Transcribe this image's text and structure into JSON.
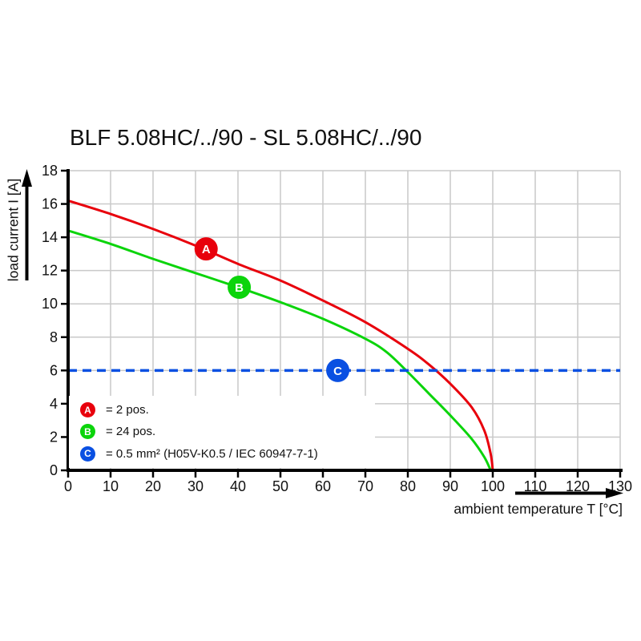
{
  "title": "BLF 5.08HC/../90 - SL 5.08HC/../90",
  "chart_data": {
    "type": "line",
    "title": "BLF 5.08HC/../90 - SL 5.08HC/../90",
    "xlabel": "ambient temperature T [°C]",
    "ylabel": "load current I [A]",
    "x_axis": {
      "min": 0,
      "max": 130,
      "ticks": [
        0,
        10,
        20,
        30,
        40,
        50,
        60,
        70,
        80,
        90,
        100,
        110,
        120,
        130
      ]
    },
    "y_axis": {
      "min": 0,
      "max": 18,
      "ticks": [
        0,
        2,
        4,
        6,
        8,
        10,
        12,
        14,
        16,
        18
      ]
    },
    "grid": true,
    "legend_position": "bottom-left-inside",
    "series": [
      {
        "id": "A",
        "name": "2 pos.",
        "color": "#e8000c",
        "style": "solid",
        "points": [
          [
            0,
            16.2
          ],
          [
            10,
            15.4
          ],
          [
            20,
            14.5
          ],
          [
            30,
            13.5
          ],
          [
            40,
            12.4
          ],
          [
            50,
            11.4
          ],
          [
            60,
            10.2
          ],
          [
            70,
            8.9
          ],
          [
            80,
            7.3
          ],
          [
            85,
            6.35
          ],
          [
            90,
            5.2
          ],
          [
            95,
            3.8
          ],
          [
            98,
            2.4
          ],
          [
            99.5,
            1.0
          ],
          [
            100,
            0
          ]
        ]
      },
      {
        "id": "B",
        "name": "24 pos.",
        "color": "#0bd40b",
        "style": "solid",
        "points": [
          [
            0,
            14.4
          ],
          [
            10,
            13.6
          ],
          [
            20,
            12.7
          ],
          [
            30,
            11.85
          ],
          [
            40,
            11.0
          ],
          [
            50,
            10.1
          ],
          [
            60,
            9.1
          ],
          [
            70,
            7.9
          ],
          [
            75,
            7.1
          ],
          [
            80,
            5.9
          ],
          [
            85,
            4.6
          ],
          [
            90,
            3.3
          ],
          [
            95,
            1.9
          ],
          [
            98,
            0.8
          ],
          [
            99.5,
            0
          ]
        ]
      },
      {
        "id": "C",
        "name": "0.5 mm² (H05V-K0.5 / IEC 60947-7-1)",
        "color": "#0a50e2",
        "style": "dashed",
        "points": [
          [
            0,
            6
          ],
          [
            130,
            6
          ]
        ]
      }
    ],
    "markers": [
      {
        "letter": "A",
        "x": 32.5,
        "y": 13.3,
        "color": "#e8000c"
      },
      {
        "letter": "B",
        "x": 40.3,
        "y": 11.0,
        "color": "#0bd40b"
      },
      {
        "letter": "C",
        "x": 63.5,
        "y": 6.0,
        "color": "#0a50e2"
      }
    ]
  },
  "legend": {
    "items": [
      {
        "letter": "A",
        "color": "#e8000c",
        "text": "= 2 pos."
      },
      {
        "letter": "B",
        "color": "#0bd40b",
        "text": "= 24 pos."
      },
      {
        "letter": "C",
        "color": "#0a50e2",
        "text": "= 0.5 mm² (H05V-K0.5 / IEC 60947-7-1)"
      }
    ]
  },
  "colors": {
    "grid": "#c9c9c9",
    "axis": "#000000",
    "background": "#ffffff",
    "text": "#111111"
  }
}
